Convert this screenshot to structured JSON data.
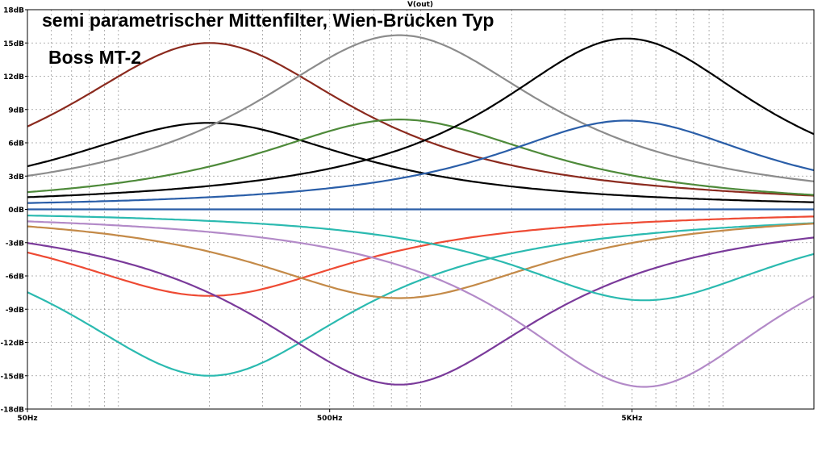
{
  "chart_data": {
    "type": "line",
    "title": "semi parametrischer Mittenfilter, Wien-Brücken Typ",
    "subtitle": "Boss MT-2",
    "trace_label": "V(out)",
    "x_scale": "log",
    "xlim": [
      50,
      20000
    ],
    "ylim": [
      -18,
      18
    ],
    "x_ticks": [
      {
        "value": 50,
        "label": "50Hz"
      },
      {
        "value": 500,
        "label": "500Hz"
      },
      {
        "value": 5000,
        "label": "5KHz"
      }
    ],
    "y_ticks": [
      {
        "value": 18,
        "label": "18dB"
      },
      {
        "value": 15,
        "label": "15dB"
      },
      {
        "value": 12,
        "label": "12dB"
      },
      {
        "value": 9,
        "label": "9dB"
      },
      {
        "value": 6,
        "label": "6dB"
      },
      {
        "value": 3,
        "label": "3dB"
      },
      {
        "value": 0,
        "label": "0dB"
      },
      {
        "value": -3,
        "label": "-3dB"
      },
      {
        "value": -6,
        "label": "-6dB"
      },
      {
        "value": -9,
        "label": "-9dB"
      },
      {
        "value": -12,
        "label": "-12dB"
      },
      {
        "value": -15,
        "label": "-15dB"
      },
      {
        "value": -18,
        "label": "-18dB"
      }
    ],
    "grid": true,
    "series": [
      {
        "color": "#8b2a1e",
        "peak_freq": 200,
        "peak_db": 15,
        "width_decades": 0.6
      },
      {
        "color": "#000000",
        "peak_freq": 200,
        "peak_db": 7.8,
        "width_decades": 0.6
      },
      {
        "color": "#8c8c8c",
        "peak_freq": 850,
        "peak_db": 15.7,
        "width_decades": 0.6
      },
      {
        "color": "#4e8a3a",
        "peak_freq": 850,
        "peak_db": 8.1,
        "width_decades": 0.6
      },
      {
        "color": "#000000",
        "peak_freq": 4800,
        "peak_db": 15.4,
        "width_decades": 0.55
      },
      {
        "color": "#2a5ea8",
        "peak_freq": 4800,
        "peak_db": 8,
        "width_decades": 0.55
      },
      {
        "color": "#ee4a33",
        "peak_freq": 200,
        "peak_db": -7.8,
        "width_decades": 0.6
      },
      {
        "color": "#2bbab0",
        "peak_freq": 200,
        "peak_db": -15,
        "width_decades": 0.6
      },
      {
        "color": "#c48a48",
        "peak_freq": 850,
        "peak_db": -8,
        "width_decades": 0.6
      },
      {
        "color": "#7a3a9a",
        "peak_freq": 850,
        "peak_db": -15.8,
        "width_decades": 0.6
      },
      {
        "color": "#2bbab0",
        "peak_freq": 5500,
        "peak_db": -8.2,
        "width_decades": 0.55
      },
      {
        "color": "#b38ac8",
        "peak_freq": 5500,
        "peak_db": -16,
        "width_decades": 0.55
      },
      {
        "color": "#2a5ea8",
        "peak_freq": 1000,
        "peak_db": 0,
        "width_decades": 0.6
      }
    ]
  }
}
